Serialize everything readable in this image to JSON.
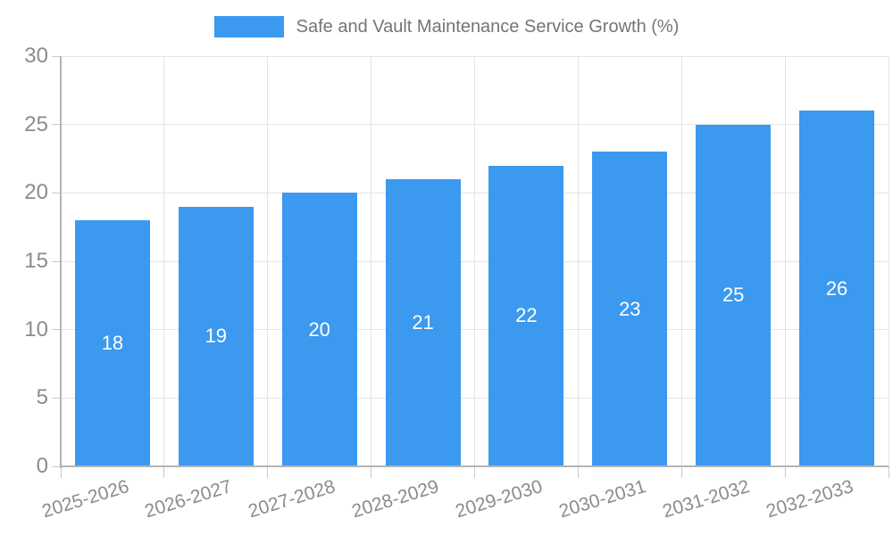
{
  "chart_data": {
    "type": "bar",
    "title": "Safe and Vault Maintenance Service Growth (%)",
    "categories": [
      "2025-2026",
      "2026-2027",
      "2027-2028",
      "2028-2029",
      "2029-2030",
      "2030-2031",
      "2031-2032",
      "2032-2033"
    ],
    "values": [
      18,
      19,
      20,
      21,
      22,
      23,
      25,
      26
    ],
    "xlabel": "",
    "ylabel": "",
    "ylim": [
      0,
      30
    ],
    "yticks": [
      0,
      5,
      10,
      15,
      20,
      25,
      30
    ],
    "grid": true,
    "legend_position": "top",
    "bar_value_labels": [
      "18",
      "19",
      "20",
      "21",
      "22",
      "23",
      "25",
      "26"
    ],
    "y_tick_labels": [
      "0",
      "5",
      "10",
      "15",
      "20",
      "25",
      "30"
    ]
  },
  "colors": {
    "bar": "#3b99ef",
    "bar_label": "#ffffff",
    "grid": "#e4e4e4",
    "axis": "#b3b3b3",
    "tick": "#c9c9c9",
    "tick_label": "#8c8c8c",
    "title": "#757575",
    "background": "#ffffff"
  }
}
